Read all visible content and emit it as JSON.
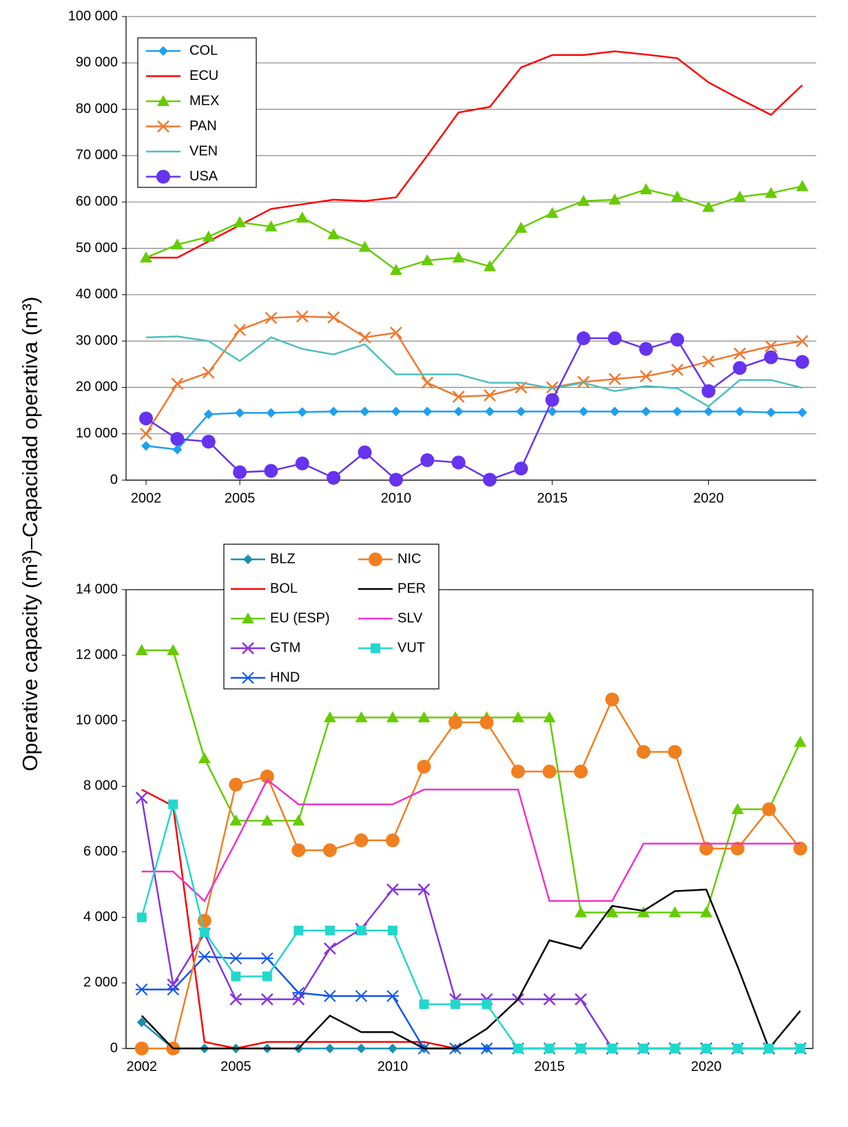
{
  "chart_data": [
    {
      "type": "line",
      "ylabel": "Operative capacity (m³)–Capacidad operativa (m³)",
      "x": [
        2002,
        2003,
        2004,
        2005,
        2006,
        2007,
        2008,
        2009,
        2010,
        2011,
        2012,
        2013,
        2014,
        2015,
        2016,
        2017,
        2018,
        2019,
        2020,
        2021,
        2022,
        2023
      ],
      "xlim": [
        2001.36,
        2023.45
      ],
      "xticks": [
        2002,
        2005,
        2010,
        2015,
        2020
      ],
      "ylim": [
        0,
        100000
      ],
      "yticks": [
        {
          "value": 0,
          "label": "0"
        },
        {
          "value": 10000,
          "label": "10 000"
        },
        {
          "value": 20000,
          "label": "20 000"
        },
        {
          "value": 30000,
          "label": "30 000"
        },
        {
          "value": 40000,
          "label": "40 000"
        },
        {
          "value": 50000,
          "label": "50 000"
        },
        {
          "value": 60000,
          "label": "60 000"
        },
        {
          "value": 70000,
          "label": "70 000"
        },
        {
          "value": 80000,
          "label": "80 000"
        },
        {
          "value": 90000,
          "label": "90 000"
        },
        {
          "value": 100000,
          "label": "100 000"
        }
      ],
      "grid": true,
      "legend": "upper left",
      "series": [
        {
          "name": "COL",
          "color": "#1f9ff0",
          "marker": "diamond",
          "values": [
            7400,
            6600,
            14200,
            14500,
            14500,
            14700,
            14800,
            14800,
            14800,
            14800,
            14800,
            14800,
            14800,
            14800,
            14800,
            14800,
            14800,
            14800,
            14800,
            14800,
            14600,
            14600
          ]
        },
        {
          "name": "ECU",
          "color": "#ff0000",
          "marker": "none",
          "values": [
            48000,
            48000,
            51500,
            55000,
            58500,
            59500,
            60500,
            60200,
            61000,
            70000,
            79300,
            80500,
            89000,
            91700,
            91700,
            92500,
            91800,
            91000,
            85800,
            82200,
            78800,
            85200
          ]
        },
        {
          "name": "MEX",
          "color": "#66cc00",
          "marker": "triangle",
          "values": [
            48000,
            50800,
            52500,
            55600,
            54700,
            56600,
            53000,
            50300,
            45300,
            47400,
            48000,
            46100,
            54400,
            57600,
            60200,
            60500,
            62700,
            61100,
            58900,
            61100,
            61900,
            63400
          ]
        },
        {
          "name": "PAN",
          "color": "#f07830",
          "marker": "x",
          "values": [
            10000,
            20800,
            23200,
            32400,
            35000,
            35300,
            35100,
            30800,
            31800,
            21000,
            18000,
            18300,
            20000,
            20000,
            21200,
            21800,
            22400,
            23800,
            25600,
            27300,
            28900,
            30000
          ]
        },
        {
          "name": "VEN",
          "color": "#4dbfbf",
          "marker": "none",
          "values": [
            30800,
            31000,
            30000,
            25700,
            30800,
            28300,
            27100,
            29300,
            22800,
            22800,
            22800,
            21000,
            21000,
            19800,
            21000,
            19200,
            20300,
            19800,
            15900,
            21600,
            21600,
            19900
          ]
        },
        {
          "name": "USA",
          "color": "#6633ee",
          "marker": "circle",
          "values": [
            13300,
            8900,
            8300,
            1700,
            2000,
            3600,
            500,
            6000,
            100,
            4300,
            3800,
            100,
            2500,
            17300,
            30600,
            30600,
            28300,
            30300,
            19200,
            24200,
            26500,
            25500
          ]
        }
      ]
    },
    {
      "type": "line",
      "x": [
        2002,
        2003,
        2004,
        2005,
        2006,
        2007,
        2008,
        2009,
        2010,
        2011,
        2012,
        2013,
        2014,
        2015,
        2016,
        2017,
        2018,
        2019,
        2020,
        2021,
        2022,
        2023
      ],
      "xlim": [
        2001.5,
        2023.4
      ],
      "xticks": [
        2002,
        2005,
        2010,
        2015,
        2020
      ],
      "ylim": [
        0,
        14000
      ],
      "yticks": [
        {
          "value": 0,
          "label": "0"
        },
        {
          "value": 2000,
          "label": "2 000"
        },
        {
          "value": 4000,
          "label": "4 000"
        },
        {
          "value": 6000,
          "label": "6 000"
        },
        {
          "value": 8000,
          "label": "8 000"
        },
        {
          "value": 10000,
          "label": "10 000"
        },
        {
          "value": 12000,
          "label": "12 000"
        },
        {
          "value": 14000,
          "label": "14 000"
        }
      ],
      "grid": false,
      "legend": "upper center",
      "series": [
        {
          "name": "BLZ",
          "color": "#1a8fb0",
          "marker": "diamond",
          "values": [
            800,
            0,
            0,
            0,
            0,
            0,
            0,
            0,
            0,
            0,
            0,
            0,
            0,
            0,
            0,
            0,
            0,
            0,
            0,
            0,
            0,
            0
          ]
        },
        {
          "name": "BOL",
          "color": "#ff0000",
          "marker": "none",
          "values": [
            7900,
            7400,
            200,
            0,
            200,
            200,
            200,
            200,
            200,
            200,
            0,
            0,
            0,
            0,
            0,
            0,
            0,
            0,
            0,
            0,
            0,
            0
          ]
        },
        {
          "name": "EU (ESP)",
          "color": "#66cc00",
          "marker": "triangle",
          "values": [
            12150,
            12150,
            8850,
            6950,
            6950,
            6950,
            10100,
            10100,
            10100,
            10100,
            10100,
            10100,
            10100,
            10100,
            4150,
            4150,
            4150,
            4150,
            4150,
            7300,
            7300,
            9350
          ]
        },
        {
          "name": "GTM",
          "color": "#8833dd",
          "marker": "x",
          "values": [
            7650,
            1950,
            3500,
            1500,
            1500,
            1500,
            3050,
            3650,
            4850,
            4850,
            1500,
            1500,
            1500,
            1500,
            1500,
            0,
            0,
            0,
            0,
            0,
            0,
            0
          ]
        },
        {
          "name": "HND",
          "color": "#1155ee",
          "marker": "asterisk",
          "values": [
            1800,
            1800,
            2800,
            2750,
            2750,
            1700,
            1600,
            1600,
            1600,
            0,
            0,
            0,
            0,
            0,
            0,
            0,
            0,
            0,
            0,
            0,
            0,
            0
          ]
        },
        {
          "name": "NIC",
          "color": "#f07f20",
          "marker": "circle",
          "values": [
            0,
            0,
            3900,
            8050,
            8300,
            6050,
            6050,
            6350,
            6350,
            8600,
            9950,
            9950,
            8450,
            8450,
            8450,
            10650,
            9050,
            9050,
            6100,
            6100,
            7300,
            6100
          ]
        },
        {
          "name": "PER",
          "color": "#000000",
          "marker": "none",
          "values": [
            1000,
            0,
            0,
            0,
            0,
            0,
            1000,
            500,
            500,
            0,
            0,
            600,
            1500,
            3300,
            3050,
            4350,
            4200,
            4800,
            4850,
            2500,
            0,
            1150
          ]
        },
        {
          "name": "SLV",
          "color": "#ee33cc",
          "marker": "none",
          "values": [
            5400,
            5400,
            4500,
            6300,
            8200,
            7450,
            7450,
            7450,
            7450,
            7900,
            7900,
            7900,
            7900,
            4500,
            4500,
            4500,
            6250,
            6250,
            6250,
            6250,
            6250,
            6250
          ]
        },
        {
          "name": "VUT",
          "color": "#22d8cc",
          "marker": "square",
          "values": [
            4000,
            7450,
            3550,
            2200,
            2200,
            3600,
            3600,
            3600,
            3600,
            1350,
            1350,
            1350,
            0,
            0,
            0,
            0,
            0,
            0,
            0,
            0,
            0,
            0
          ]
        }
      ]
    }
  ]
}
